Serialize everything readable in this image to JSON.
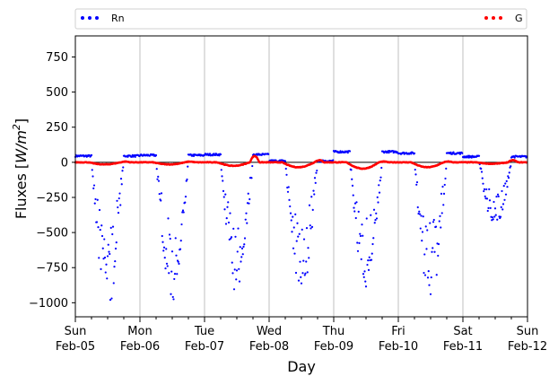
{
  "chart_data": {
    "type": "scatter",
    "xlabel": "Day",
    "ylabel_prefix": "Fluxes [",
    "ylabel_unit_main": "W/m",
    "ylabel_unit_exp": "2",
    "ylabel_suffix": "]",
    "ylim": [
      -1100,
      900
    ],
    "yticks": [
      750,
      500,
      250,
      0,
      -250,
      -500,
      -750,
      -1000
    ],
    "ytick_labels": [
      "750",
      "500",
      "250",
      "0",
      "−250",
      "−500",
      "−750",
      "−1000"
    ],
    "xlim": [
      "2023-02-05",
      "2023-02-12"
    ],
    "xticks": [
      {
        "day": "Sun",
        "date": "Feb-05"
      },
      {
        "day": "Mon",
        "date": "Feb-06"
      },
      {
        "day": "Tue",
        "date": "Feb-07"
      },
      {
        "day": "Wed",
        "date": "Feb-08"
      },
      {
        "day": "Thu",
        "date": "Feb-09"
      },
      {
        "day": "Fri",
        "date": "Feb-10"
      },
      {
        "day": "Sat",
        "date": "Feb-11"
      },
      {
        "day": "Sun",
        "date": "Feb-12"
      }
    ],
    "grid": "vertical",
    "legend_placement": "above plot",
    "series": [
      {
        "name": "Rn",
        "color": "#0000ff",
        "marker": "dot",
        "daily_minimum": [
          -1000,
          -950,
          -900,
          -930,
          -870,
          -960,
          -450
        ],
        "night_value": [
          45,
          50,
          55,
          10,
          75,
          65,
          40
        ]
      },
      {
        "name": "G",
        "color": "#ff0000",
        "marker": "dot",
        "daily_minimum": [
          -15,
          -15,
          -25,
          -35,
          -45,
          -35,
          -10
        ],
        "daily_maximum": [
          5,
          5,
          45,
          15,
          5,
          5,
          15
        ]
      }
    ]
  }
}
